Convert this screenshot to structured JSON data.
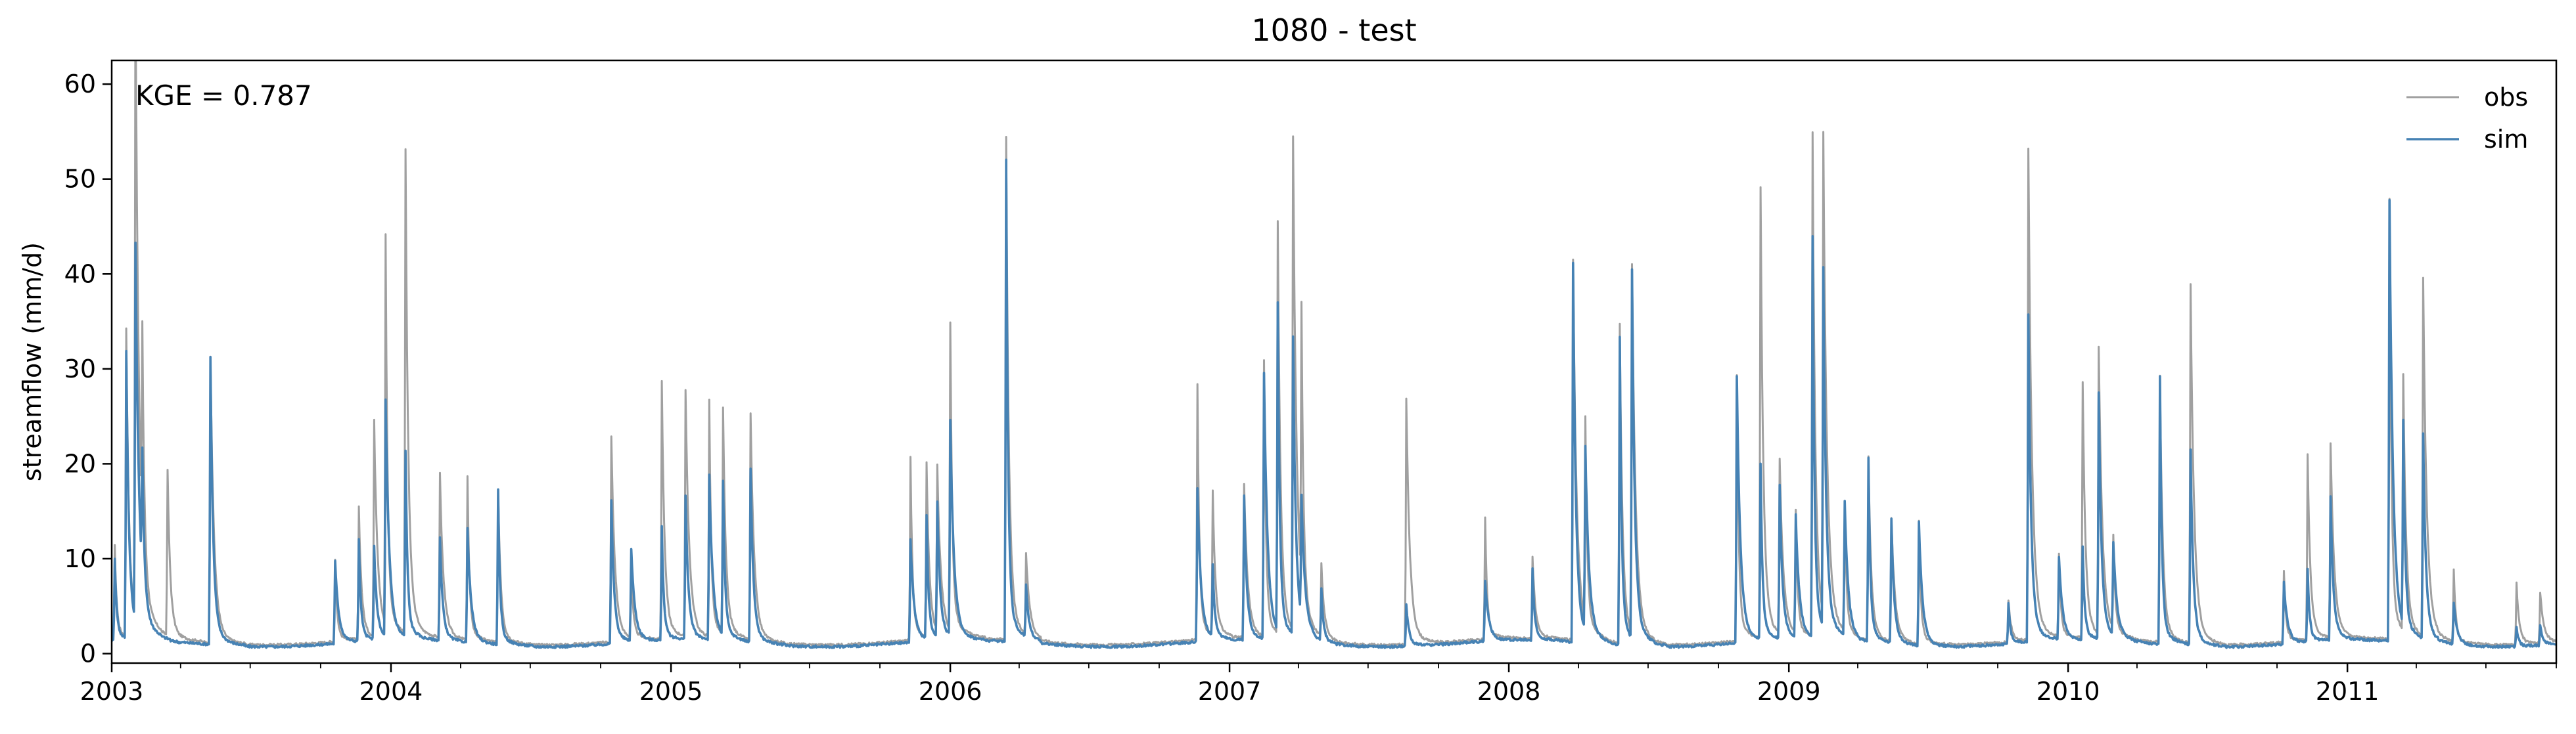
{
  "chart_data": {
    "type": "line",
    "title": "1080 - test",
    "xlabel": "",
    "ylabel": "streamflow (mm/d)",
    "annotation": "KGE = 0.787",
    "xlim": [
      "2003-01-01",
      "2011-10-01"
    ],
    "ylim": [
      -1,
      62.5
    ],
    "xticks": [
      "2003",
      "2004",
      "2005",
      "2006",
      "2007",
      "2008",
      "2009",
      "2010",
      "2011"
    ],
    "yticks": [
      0,
      10,
      20,
      30,
      40,
      50,
      60
    ],
    "grid": false,
    "legend": {
      "position": "top-right"
    },
    "series": [
      {
        "name": "obs",
        "color": "#a0a0a0",
        "baseflow": 0.8,
        "peaks": [
          [
            "2003-01-05",
            9
          ],
          [
            "2003-01-20",
            30
          ],
          [
            "2003-02-01",
            62
          ],
          [
            "2003-02-10",
            20
          ],
          [
            "2003-03-15",
            16
          ],
          [
            "2003-05-10",
            28
          ],
          [
            "2003-10-20",
            8
          ],
          [
            "2003-11-20",
            13
          ],
          [
            "2003-12-10",
            21
          ],
          [
            "2003-12-25",
            38
          ],
          [
            "2004-01-20",
            47
          ],
          [
            "2004-03-05",
            16
          ],
          [
            "2004-04-10",
            16
          ],
          [
            "2004-05-20",
            15
          ],
          [
            "2004-10-15",
            20
          ],
          [
            "2004-11-10",
            7
          ],
          [
            "2004-12-20",
            25
          ],
          [
            "2005-01-20",
            24
          ],
          [
            "2005-02-20",
            23
          ],
          [
            "2005-03-10",
            22
          ],
          [
            "2005-04-15",
            22
          ],
          [
            "2005-11-10",
            18
          ],
          [
            "2005-12-01",
            17
          ],
          [
            "2005-12-15",
            16
          ],
          [
            "2006-01-01",
            30
          ],
          [
            "2006-03-15",
            49
          ],
          [
            "2006-04-10",
            8
          ],
          [
            "2006-11-20",
            25
          ],
          [
            "2006-12-10",
            14
          ],
          [
            "2007-01-20",
            15
          ],
          [
            "2007-02-15",
            27
          ],
          [
            "2007-03-05",
            40
          ],
          [
            "2007-03-25",
            48
          ],
          [
            "2007-04-05",
            27
          ],
          [
            "2007-05-01",
            7
          ],
          [
            "2007-08-20",
            24
          ],
          [
            "2007-12-01",
            12
          ],
          [
            "2008-02-01",
            8
          ],
          [
            "2008-03-25",
            37
          ],
          [
            "2008-04-10",
            20
          ],
          [
            "2008-05-25",
            31
          ],
          [
            "2008-06-10",
            36
          ],
          [
            "2008-10-25",
            26
          ],
          [
            "2008-11-25",
            44
          ],
          [
            "2008-12-20",
            17
          ],
          [
            "2009-01-10",
            12
          ],
          [
            "2009-02-01",
            49
          ],
          [
            "2009-02-15",
            47
          ],
          [
            "2009-03-15",
            12
          ],
          [
            "2009-04-15",
            18
          ],
          [
            "2009-05-15",
            12
          ],
          [
            "2009-06-20",
            12
          ],
          [
            "2009-10-15",
            4
          ],
          [
            "2009-11-10",
            48
          ],
          [
            "2009-12-20",
            8
          ],
          [
            "2010-01-20",
            25
          ],
          [
            "2010-02-10",
            28
          ],
          [
            "2010-03-01",
            9
          ],
          [
            "2010-05-01",
            26
          ],
          [
            "2010-06-10",
            35
          ],
          [
            "2010-10-10",
            7
          ],
          [
            "2010-11-10",
            18
          ],
          [
            "2010-12-10",
            19
          ],
          [
            "2011-02-25",
            43
          ],
          [
            "2011-03-15",
            25
          ],
          [
            "2011-04-10",
            35
          ],
          [
            "2011-05-20",
            7
          ],
          [
            "2011-08-10",
            6
          ],
          [
            "2011-09-10",
            5
          ]
        ]
      },
      {
        "name": "sim",
        "color": "#4682b4",
        "baseflow": 0.6,
        "peaks": [
          [
            "2003-01-05",
            8
          ],
          [
            "2003-01-20",
            28
          ],
          [
            "2003-02-01",
            37
          ],
          [
            "2003-02-10",
            12
          ],
          [
            "2003-05-10",
            28
          ],
          [
            "2003-10-20",
            8
          ],
          [
            "2003-11-20",
            10
          ],
          [
            "2003-12-10",
            9
          ],
          [
            "2003-12-25",
            23
          ],
          [
            "2004-01-20",
            18
          ],
          [
            "2004-03-05",
            10
          ],
          [
            "2004-04-10",
            11
          ],
          [
            "2004-05-20",
            15
          ],
          [
            "2004-10-15",
            14
          ],
          [
            "2004-11-10",
            9
          ],
          [
            "2004-12-20",
            11
          ],
          [
            "2005-01-20",
            14
          ],
          [
            "2005-02-20",
            16
          ],
          [
            "2005-03-10",
            15
          ],
          [
            "2005-04-15",
            17
          ],
          [
            "2005-11-10",
            10
          ],
          [
            "2005-12-01",
            12
          ],
          [
            "2005-12-15",
            13
          ],
          [
            "2006-01-01",
            21
          ],
          [
            "2006-03-15",
            47
          ],
          [
            "2006-04-10",
            5
          ],
          [
            "2006-11-20",
            15
          ],
          [
            "2006-12-10",
            7
          ],
          [
            "2007-01-20",
            14
          ],
          [
            "2007-02-15",
            26
          ],
          [
            "2007-03-05",
            32
          ],
          [
            "2007-03-25",
            29
          ],
          [
            "2007-04-05",
            12
          ],
          [
            "2007-05-01",
            5
          ],
          [
            "2007-08-20",
            4
          ],
          [
            "2007-12-01",
            6
          ],
          [
            "2008-02-01",
            7
          ],
          [
            "2008-03-25",
            37
          ],
          [
            "2008-04-10",
            18
          ],
          [
            "2008-05-25",
            30
          ],
          [
            "2008-06-10",
            36
          ],
          [
            "2008-10-25",
            26
          ],
          [
            "2008-11-25",
            17
          ],
          [
            "2008-12-20",
            15
          ],
          [
            "2009-01-10",
            12
          ],
          [
            "2009-02-01",
            39
          ],
          [
            "2009-02-15",
            35
          ],
          [
            "2009-03-15",
            13
          ],
          [
            "2009-04-15",
            18
          ],
          [
            "2009-05-15",
            12
          ],
          [
            "2009-06-20",
            12
          ],
          [
            "2009-10-15",
            4
          ],
          [
            "2009-11-10",
            32
          ],
          [
            "2009-12-20",
            8
          ],
          [
            "2010-01-20",
            9
          ],
          [
            "2010-02-10",
            24
          ],
          [
            "2010-03-01",
            9
          ],
          [
            "2010-05-01",
            26
          ],
          [
            "2010-06-10",
            19
          ],
          [
            "2010-10-10",
            6
          ],
          [
            "2010-11-10",
            7
          ],
          [
            "2010-12-10",
            14
          ],
          [
            "2011-02-25",
            43
          ],
          [
            "2011-03-15",
            20
          ],
          [
            "2011-04-10",
            20
          ],
          [
            "2011-05-20",
            4
          ],
          [
            "2011-08-10",
            2
          ],
          [
            "2011-09-10",
            2
          ]
        ]
      }
    ]
  }
}
